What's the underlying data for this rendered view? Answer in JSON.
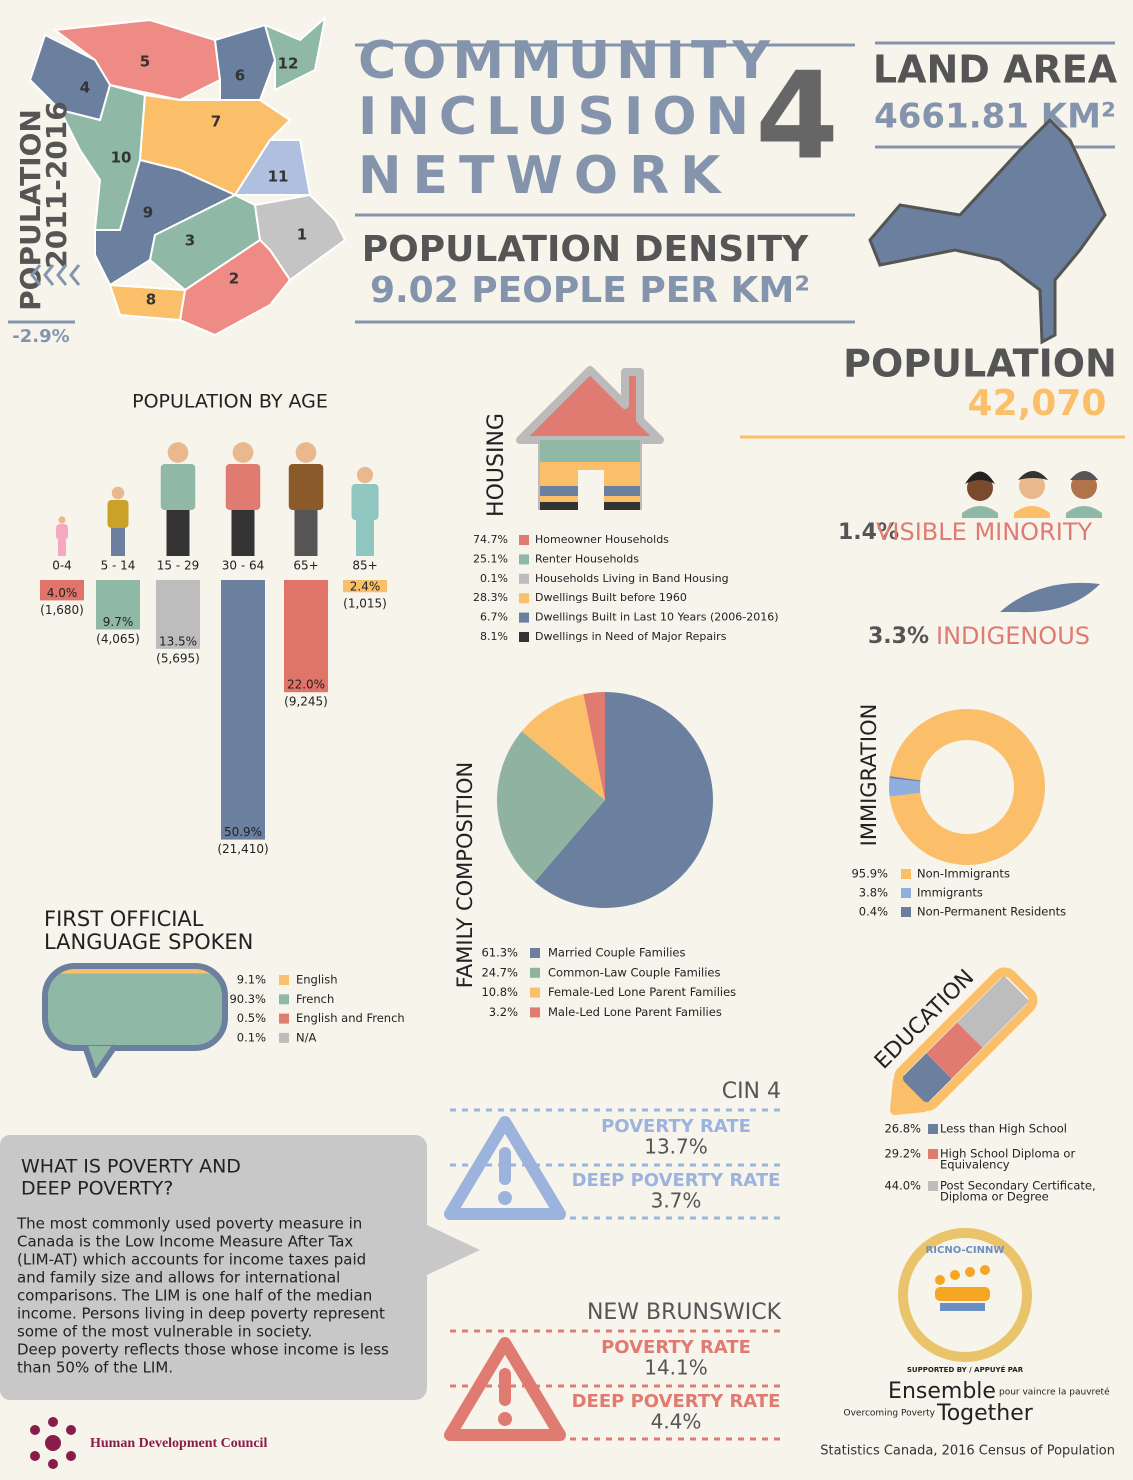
{
  "title": {
    "lines": [
      "COMMUNITY",
      "INCLUSION",
      "NETWORK"
    ],
    "number": "4"
  },
  "map": {
    "regions": [
      "5",
      "4",
      "6",
      "12",
      "10",
      "7",
      "11",
      "9",
      "3",
      "1",
      "2",
      "8"
    ]
  },
  "population_change": {
    "label_lines": [
      "POPULATION",
      "2011-2016"
    ],
    "value": "-2.9%"
  },
  "land_area": {
    "label": "LAND AREA",
    "value": "4661.81 KM²"
  },
  "density": {
    "label": "POPULATION DENSITY",
    "value": "9.02 PEOPLE PER KM²"
  },
  "population": {
    "label": "POPULATION",
    "value": "42,070"
  },
  "age": {
    "title": "POPULATION BY AGE",
    "categories": [
      "0-4",
      "5 - 14",
      "15 - 29",
      "30 - 64",
      "65+",
      "85+"
    ],
    "values": [
      4.0,
      9.7,
      13.5,
      50.9,
      22.0,
      2.4
    ],
    "value_labels": [
      "4.0%",
      "9.7%",
      "13.5%",
      "50.9%",
      "22.0%",
      "2.4%"
    ],
    "counts": [
      "(1,680)",
      "(4,065)",
      "(5,695)",
      "(21,410)",
      "(9,245)",
      "(1,015)"
    ],
    "colors": [
      "#e07468",
      "#8fb8a6",
      "#bdbdbd",
      "#6b7f9e",
      "#e07468",
      "#fbbf6a"
    ]
  },
  "housing": {
    "title": "HOUSING",
    "items": [
      {
        "value": "74.7%",
        "label": "Homeowner Households",
        "color": "#e07b72"
      },
      {
        "value": "25.1%",
        "label": "Renter Households",
        "color": "#8fb8a6"
      },
      {
        "value": "0.1%",
        "label": "Households Living in Band Housing",
        "color": "#bdbdbd"
      },
      {
        "value": "28.3%",
        "label": "Dwellings Built before 1960",
        "color": "#fbbf6a"
      },
      {
        "value": "6.7%",
        "label": "Dwellings Built in Last 10 Years (2006-2016)",
        "color": "#6b7f9e"
      },
      {
        "value": "8.1%",
        "label": "Dwellings in Need of Major Repairs",
        "color": "#333333"
      }
    ]
  },
  "family": {
    "title": "FAMILY COMPOSITION",
    "values": [
      61.3,
      24.7,
      10.8,
      3.2
    ],
    "value_labels": [
      "61.3%",
      "24.7%",
      "10.8%",
      "3.2%"
    ],
    "names": [
      "Married Couple Families",
      "Common-Law Couple Families",
      "Female-Led Lone Parent Families",
      "Male-Led Lone Parent Families"
    ],
    "colors": [
      "#6b7f9e",
      "#8fb3a0",
      "#fbbf6a",
      "#e07b72"
    ]
  },
  "immigration": {
    "title": "IMMIGRATION",
    "values": [
      95.9,
      3.8,
      0.4
    ],
    "value_labels": [
      "95.9%",
      "3.8%",
      "0.4%"
    ],
    "names": [
      "Non-Immigrants",
      "Immigrants",
      "Non-Permanent Residents"
    ],
    "colors": [
      "#fbbf6a",
      "#8fb0de",
      "#6b7f9e"
    ]
  },
  "visible_minority": {
    "value": "1.4%",
    "label": "VISIBLE MINORITY"
  },
  "indigenous": {
    "value": "3.3%",
    "label": "INDIGENOUS"
  },
  "language": {
    "title_lines": [
      "FIRST OFFICIAL",
      "LANGUAGE SPOKEN"
    ],
    "values": [
      9.1,
      90.3,
      0.5,
      0.1
    ],
    "value_labels": [
      "9.1%",
      "90.3%",
      "0.5%",
      "0.1%"
    ],
    "names": [
      "English",
      "French",
      "English and French",
      "N/A"
    ],
    "colors": [
      "#fbbf6a",
      "#8fb8a6",
      "#e07b72",
      "#bdbdbd"
    ]
  },
  "education": {
    "title": "EDUCATION",
    "values": [
      26.8,
      29.2,
      44.0
    ],
    "value_labels": [
      "26.8%",
      "29.2%",
      "44.0%"
    ],
    "names": [
      [
        "Less than High School"
      ],
      [
        "High School Diploma or",
        "Equivalency"
      ],
      [
        "Post Secondary Certificate,",
        "Diploma or Degree"
      ]
    ],
    "colors": [
      "#6b7f9e",
      "#e07b72",
      "#bdbdbd"
    ]
  },
  "poverty_info": {
    "title_lines": [
      "WHAT IS POVERTY AND",
      "DEEP POVERTY?"
    ],
    "body_lines": [
      "The most commonly used poverty measure in",
      "Canada is the Low Income Measure After Tax",
      "(LIM-AT) which accounts for income taxes paid",
      "and family size and allows for international",
      "comparisons. The LIM is one half of the median",
      "income. Persons living in deep poverty represent",
      "some of the most vulnerable in society.",
      "Deep poverty reflects those whose income is less",
      "than 50% of the LIM."
    ]
  },
  "poverty": [
    {
      "region": "CIN 4",
      "poverty_label": "POVERTY RATE",
      "poverty_rate": "13.7%",
      "deep_label": "DEEP POVERTY RATE",
      "deep_rate": "3.7%"
    },
    {
      "region": "NEW BRUNSWICK",
      "poverty_label": "POVERTY RATE",
      "poverty_rate": "14.1%",
      "deep_label": "DEEP POVERTY RATE",
      "deep_rate": "4.4%"
    }
  ],
  "logo": {
    "name": "RICNO-CINNW",
    "supported": "SUPPORTED BY / APPUYÉ PAR",
    "ensemble": "Ensemble",
    "vaincre": "pour vaincre la pauvreté",
    "overcoming": "Overcoming Poverty",
    "together": "Together"
  },
  "footer": {
    "org": "Human Development Council",
    "source": "Statistics Canada, 2016 Census of Population"
  }
}
